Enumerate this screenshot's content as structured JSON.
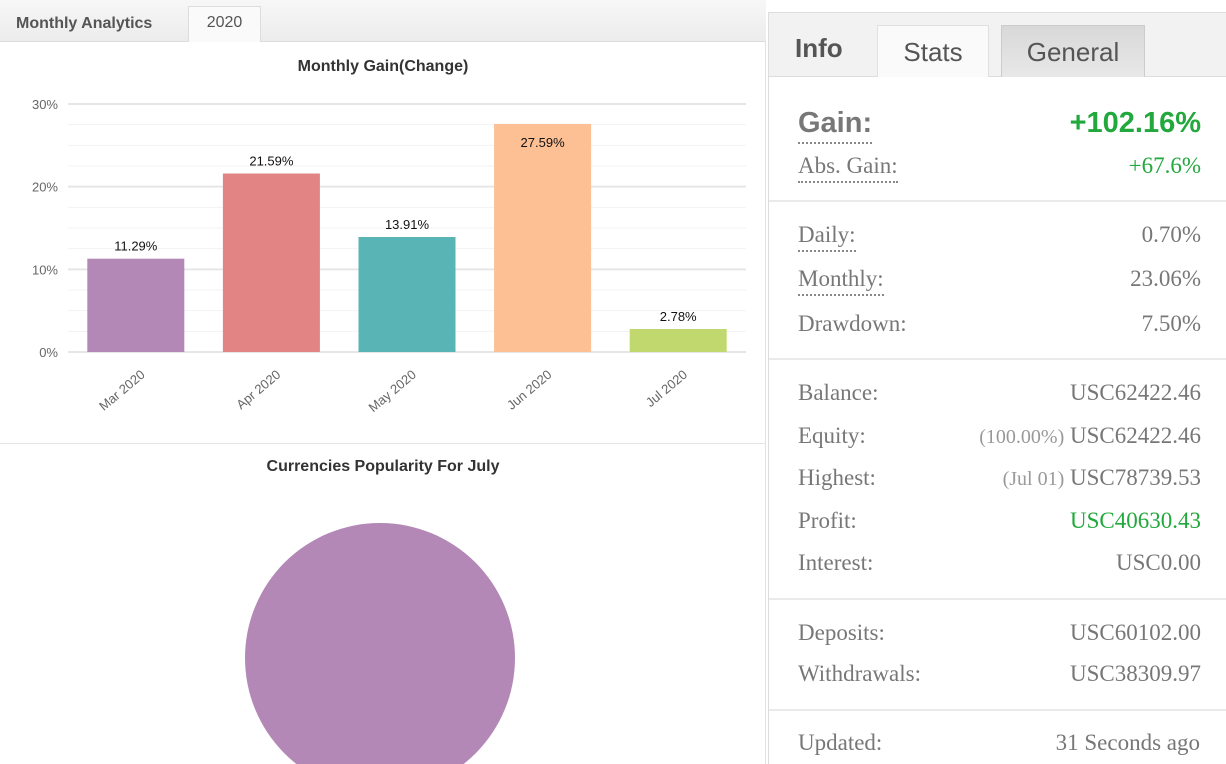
{
  "left": {
    "tabs": [
      "Monthly Analytics",
      "2020"
    ]
  },
  "chart_data": [
    {
      "type": "bar",
      "title": "Monthly Gain(Change)",
      "categories": [
        "Mar 2020",
        "Apr 2020",
        "May 2020",
        "Jun 2020",
        "Jul 2020"
      ],
      "values": [
        11.29,
        21.59,
        13.91,
        27.59,
        2.78
      ],
      "labels": [
        "11.29%",
        "21.59%",
        "13.91%",
        "27.59%",
        "2.78%"
      ],
      "colors": [
        "#b388b6",
        "#e28483",
        "#59b4b5",
        "#fdbf94",
        "#c1d86e"
      ],
      "yticks": [
        "0%",
        "10%",
        "20%",
        "30%"
      ],
      "ylim": [
        0,
        30
      ],
      "grid": true,
      "xlabel": "",
      "ylabel": ""
    },
    {
      "type": "pie",
      "title": "Currencies Popularity For July",
      "values": [
        100
      ],
      "colors": [
        "#b388b6"
      ]
    }
  ],
  "right": {
    "tabs": [
      "Info",
      "Stats",
      "General"
    ],
    "gain_label": "Gain:",
    "gain": "+102.16%",
    "abs_gain_label": "Abs. Gain:",
    "abs_gain": "+67.6%",
    "daily_label": "Daily:",
    "daily": "0.70%",
    "monthly_label": "Monthly:",
    "monthly": "23.06%",
    "drawdown_label": "Drawdown:",
    "drawdown": "7.50%",
    "balance_label": "Balance:",
    "balance": "USC62422.46",
    "equity_label": "Equity:",
    "equity_pct": "(100.00%)",
    "equity": "USC62422.46",
    "highest_label": "Highest:",
    "highest_date": "(Jul 01)",
    "highest": "USC78739.53",
    "profit_label": "Profit:",
    "profit": "USC40630.43",
    "interest_label": "Interest:",
    "interest": "USC0.00",
    "deposits_label": "Deposits:",
    "deposits": "USC60102.00",
    "withdrawals_label": "Withdrawals:",
    "withdrawals": "USC38309.97",
    "updated_label": "Updated:",
    "updated": "31 Seconds ago"
  }
}
